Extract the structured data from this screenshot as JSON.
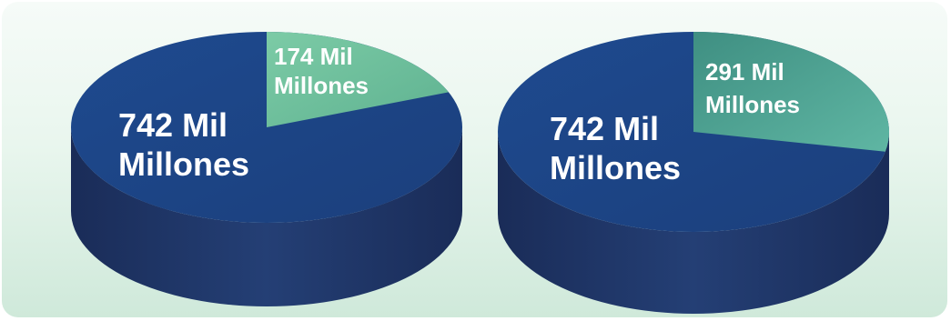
{
  "colors": {
    "main_top": "#1f4a8d",
    "main_side_light": "#25467f",
    "main_side_dark": "#15264d",
    "slice_top": "#74c29e",
    "slice_top_dark": "#3f9f8b",
    "slice_side": "#2c7f73"
  },
  "chart_data": [
    {
      "type": "pie",
      "title": "",
      "slices": [
        {
          "label_line1": "742 Mil",
          "label_line2": "Millones",
          "value": 742
        },
        {
          "label_line1": "174 Mil",
          "label_line2": "Millones",
          "value": 174
        }
      ]
    },
    {
      "type": "pie",
      "title": "",
      "slices": [
        {
          "label_line1": "742 Mil",
          "label_line2": "Millones",
          "value": 742
        },
        {
          "label_line1": "291 Mil",
          "label_line2": "Millones",
          "value": 291
        }
      ]
    }
  ]
}
